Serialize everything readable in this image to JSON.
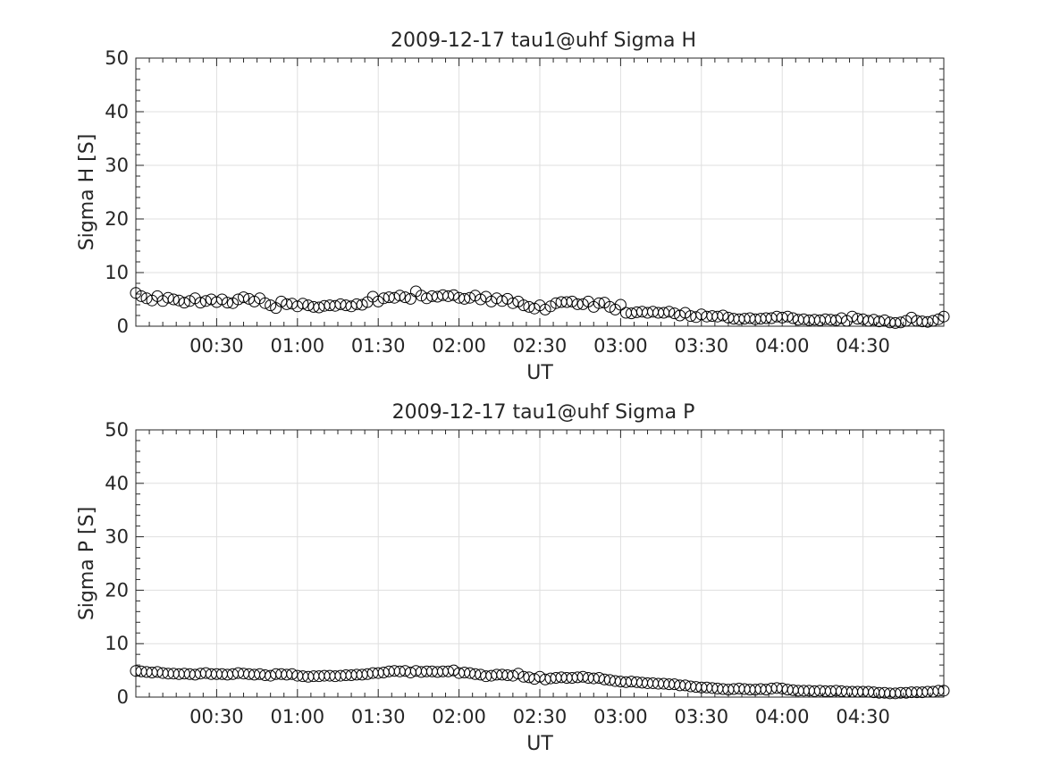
{
  "chart_data": [
    {
      "type": "scatter",
      "title": "2009-12-17  tau1@uhf Sigma H",
      "xlabel": "UT",
      "ylabel": "Sigma H [S]",
      "ylim": [
        0,
        50
      ],
      "xlim": [
        "00:00",
        "05:00"
      ],
      "xticks": [
        "00:30",
        "01:00",
        "01:30",
        "02:00",
        "02:30",
        "03:00",
        "03:30",
        "04:00",
        "04:30"
      ],
      "yticks": [
        "0",
        "10",
        "20",
        "30",
        "40",
        "50"
      ],
      "grid": true,
      "marker": "open-circle",
      "series": [
        {
          "x": [
            "00:00",
            "00:02",
            "00:04",
            "00:06",
            "00:08",
            "00:10",
            "00:12",
            "00:14",
            "00:16",
            "00:18",
            "00:20",
            "00:22",
            "00:24",
            "00:26",
            "00:28",
            "00:30",
            "00:32",
            "00:34",
            "00:36",
            "00:38",
            "00:40",
            "00:42",
            "00:44",
            "00:46",
            "00:48",
            "00:50",
            "00:52",
            "00:54",
            "00:56",
            "00:58",
            "01:00",
            "01:02",
            "01:04",
            "01:06",
            "01:08",
            "01:10",
            "01:12",
            "01:14",
            "01:16",
            "01:18",
            "01:20",
            "01:22",
            "01:24",
            "01:26",
            "01:28",
            "01:30",
            "01:32",
            "01:34",
            "01:36",
            "01:38",
            "01:40",
            "01:42",
            "01:44",
            "01:46",
            "01:48",
            "01:50",
            "01:52",
            "01:54",
            "01:56",
            "01:58",
            "02:00",
            "02:02",
            "02:04",
            "02:06",
            "02:08",
            "02:10",
            "02:12",
            "02:14",
            "02:16",
            "02:18",
            "02:20",
            "02:22",
            "02:24",
            "02:26",
            "02:28",
            "02:30",
            "02:32",
            "02:34",
            "02:36",
            "02:38",
            "02:40",
            "02:42",
            "02:44",
            "02:46",
            "02:48",
            "02:50",
            "02:52",
            "02:54",
            "02:56",
            "02:58",
            "03:00",
            "03:02",
            "03:04",
            "03:06",
            "03:08",
            "03:10",
            "03:12",
            "03:14",
            "03:16",
            "03:18",
            "03:20",
            "03:22",
            "03:24",
            "03:26",
            "03:28",
            "03:30",
            "03:32",
            "03:34",
            "03:36",
            "03:38",
            "03:40",
            "03:42",
            "03:44",
            "03:46",
            "03:48",
            "03:50",
            "03:52",
            "03:54",
            "03:56",
            "03:58",
            "04:00",
            "04:02",
            "04:04",
            "04:06",
            "04:08",
            "04:10",
            "04:12",
            "04:14",
            "04:16",
            "04:18",
            "04:20",
            "04:22",
            "04:24",
            "04:26",
            "04:28",
            "04:30",
            "04:32",
            "04:34",
            "04:36",
            "04:38",
            "04:40",
            "04:42",
            "04:44",
            "04:46",
            "04:48",
            "04:50",
            "04:52",
            "04:54",
            "04:56",
            "04:58",
            "05:00"
          ],
          "y": [
            6.2,
            5.6,
            5.2,
            4.8,
            5.6,
            4.7,
            5.3,
            5.0,
            4.8,
            4.4,
            4.7,
            5.2,
            4.4,
            4.7,
            5.0,
            4.5,
            5.0,
            4.4,
            4.3,
            5.0,
            5.4,
            5.1,
            4.6,
            5.2,
            4.3,
            3.9,
            3.4,
            4.6,
            4.1,
            4.2,
            3.7,
            4.2,
            3.9,
            3.6,
            3.5,
            3.8,
            3.9,
            3.8,
            4.1,
            3.9,
            3.7,
            4.1,
            4.0,
            4.5,
            5.5,
            4.6,
            5.2,
            5.4,
            5.3,
            5.7,
            5.4,
            5.1,
            6.5,
            5.7,
            5.2,
            5.6,
            5.5,
            5.8,
            5.6,
            5.8,
            5.3,
            5.1,
            5.3,
            5.7,
            5.0,
            5.5,
            4.6,
            5.2,
            4.7,
            5.1,
            4.3,
            4.6,
            3.9,
            3.6,
            3.3,
            3.9,
            3.1,
            3.7,
            4.3,
            4.5,
            4.5,
            4.6,
            4.1,
            4.1,
            4.6,
            3.6,
            4.3,
            4.4,
            3.6,
            3.1,
            4.0,
            2.5,
            2.4,
            2.6,
            2.7,
            2.5,
            2.7,
            2.5,
            2.5,
            2.7,
            2.4,
            2.0,
            2.5,
            1.9,
            1.7,
            2.2,
            1.8,
            1.9,
            1.8,
            2.0,
            1.6,
            1.4,
            1.3,
            1.4,
            1.5,
            1.3,
            1.4,
            1.5,
            1.5,
            1.8,
            1.6,
            1.8,
            1.5,
            1.2,
            1.3,
            1.1,
            1.2,
            1.1,
            1.3,
            1.2,
            1.1,
            1.5,
            1.0,
            1.8,
            1.4,
            1.3,
            1.0,
            1.2,
            0.9,
            1.1,
            0.7,
            0.6,
            0.7,
            1.0,
            1.6,
            1.0,
            0.9,
            0.8,
            1.0,
            1.3,
            1.8
          ]
        }
      ]
    },
    {
      "type": "scatter",
      "title": "2009-12-17  tau1@uhf Sigma P",
      "xlabel": "UT",
      "ylabel": "Sigma P [S]",
      "ylim": [
        0,
        50
      ],
      "xlim": [
        "00:00",
        "05:00"
      ],
      "xticks": [
        "00:30",
        "01:00",
        "01:30",
        "02:00",
        "02:30",
        "03:00",
        "03:30",
        "04:00",
        "04:30"
      ],
      "yticks": [
        "0",
        "10",
        "20",
        "30",
        "40",
        "50"
      ],
      "grid": true,
      "marker": "open-circle",
      "series": [
        {
          "x": [
            "00:00",
            "00:02",
            "00:04",
            "00:06",
            "00:08",
            "00:10",
            "00:12",
            "00:14",
            "00:16",
            "00:18",
            "00:20",
            "00:22",
            "00:24",
            "00:26",
            "00:28",
            "00:30",
            "00:32",
            "00:34",
            "00:36",
            "00:38",
            "00:40",
            "00:42",
            "00:44",
            "00:46",
            "00:48",
            "00:50",
            "00:52",
            "00:54",
            "00:56",
            "00:58",
            "01:00",
            "01:02",
            "01:04",
            "01:06",
            "01:08",
            "01:10",
            "01:12",
            "01:14",
            "01:16",
            "01:18",
            "01:20",
            "01:22",
            "01:24",
            "01:26",
            "01:28",
            "01:30",
            "01:32",
            "01:34",
            "01:36",
            "01:38",
            "01:40",
            "01:42",
            "01:44",
            "01:46",
            "01:48",
            "01:50",
            "01:52",
            "01:54",
            "01:56",
            "01:58",
            "02:00",
            "02:02",
            "02:04",
            "02:06",
            "02:08",
            "02:10",
            "02:12",
            "02:14",
            "02:16",
            "02:18",
            "02:20",
            "02:22",
            "02:24",
            "02:26",
            "02:28",
            "02:30",
            "02:32",
            "02:34",
            "02:36",
            "02:38",
            "02:40",
            "02:42",
            "02:44",
            "02:46",
            "02:48",
            "02:50",
            "02:52",
            "02:54",
            "02:56",
            "02:58",
            "03:00",
            "03:02",
            "03:04",
            "03:06",
            "03:08",
            "03:10",
            "03:12",
            "03:14",
            "03:16",
            "03:18",
            "03:20",
            "03:22",
            "03:24",
            "03:26",
            "03:28",
            "03:30",
            "03:32",
            "03:34",
            "03:36",
            "03:38",
            "03:40",
            "03:42",
            "03:44",
            "03:46",
            "03:48",
            "03:50",
            "03:52",
            "03:54",
            "03:56",
            "03:58",
            "04:00",
            "04:02",
            "04:04",
            "04:06",
            "04:08",
            "04:10",
            "04:12",
            "04:14",
            "04:16",
            "04:18",
            "04:20",
            "04:22",
            "04:24",
            "04:26",
            "04:28",
            "04:30",
            "04:32",
            "04:34",
            "04:36",
            "04:38",
            "04:40",
            "04:42",
            "04:44",
            "04:46",
            "04:48",
            "04:50",
            "04:52",
            "04:54",
            "04:56",
            "04:58",
            "05:00"
          ],
          "y": [
            4.9,
            4.8,
            4.7,
            4.6,
            4.7,
            4.5,
            4.4,
            4.4,
            4.3,
            4.4,
            4.3,
            4.2,
            4.4,
            4.5,
            4.3,
            4.3,
            4.3,
            4.2,
            4.3,
            4.5,
            4.4,
            4.3,
            4.2,
            4.3,
            4.1,
            4.0,
            4.3,
            4.3,
            4.2,
            4.3,
            4.0,
            3.9,
            3.8,
            3.9,
            3.9,
            4.0,
            4.0,
            3.9,
            4.0,
            4.1,
            4.1,
            4.2,
            4.2,
            4.3,
            4.5,
            4.5,
            4.6,
            4.8,
            4.9,
            4.8,
            4.9,
            4.6,
            4.9,
            4.7,
            4.8,
            4.8,
            4.7,
            4.8,
            4.8,
            5.0,
            4.5,
            4.6,
            4.5,
            4.3,
            4.2,
            3.9,
            4.0,
            4.2,
            4.2,
            4.1,
            4.0,
            4.4,
            3.8,
            3.7,
            3.4,
            3.8,
            3.3,
            3.5,
            3.6,
            3.7,
            3.6,
            3.6,
            3.7,
            3.8,
            3.6,
            3.5,
            3.6,
            3.3,
            3.2,
            3.0,
            2.9,
            2.8,
            2.9,
            2.8,
            2.7,
            2.6,
            2.6,
            2.5,
            2.5,
            2.4,
            2.4,
            2.2,
            2.2,
            2.0,
            1.9,
            1.8,
            1.8,
            1.7,
            1.6,
            1.5,
            1.4,
            1.5,
            1.6,
            1.5,
            1.4,
            1.4,
            1.5,
            1.4,
            1.6,
            1.7,
            1.6,
            1.4,
            1.3,
            1.2,
            1.2,
            1.2,
            1.1,
            1.2,
            1.1,
            1.1,
            1.2,
            1.1,
            1.0,
            1.0,
            1.0,
            1.0,
            1.0,
            0.9,
            0.8,
            0.8,
            0.7,
            0.7,
            0.8,
            0.8,
            0.9,
            0.9,
            0.9,
            1.0,
            1.0,
            1.2,
            1.2
          ]
        }
      ]
    }
  ]
}
